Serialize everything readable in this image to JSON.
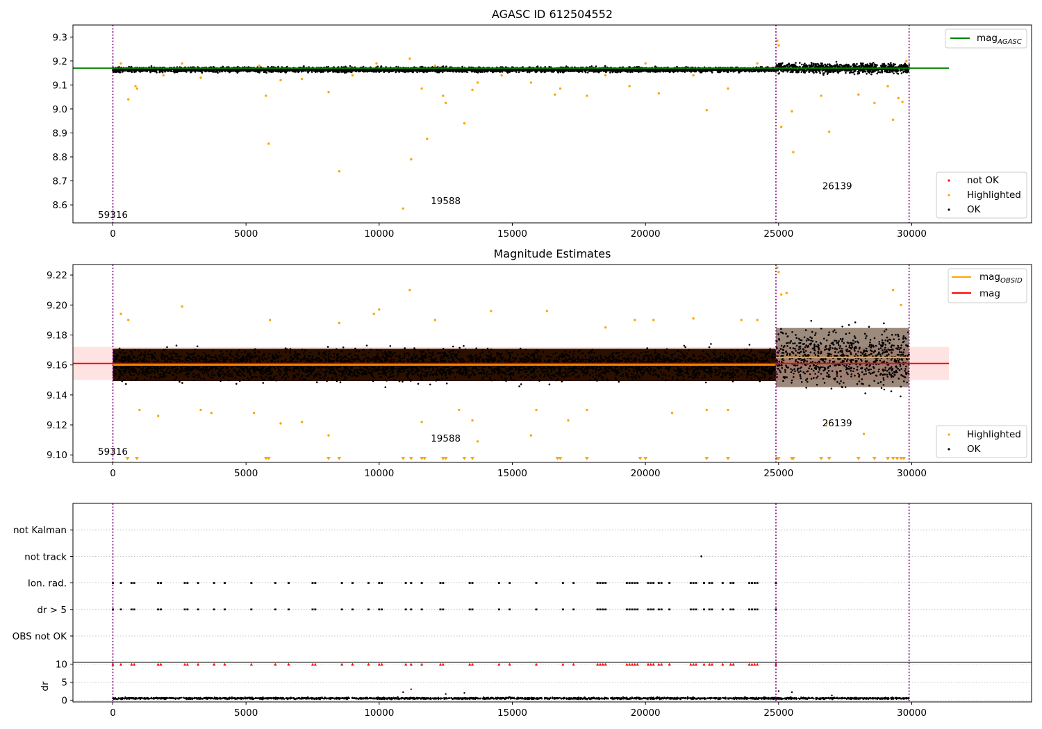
{
  "chart_data": [
    {
      "id": "panel1",
      "type": "scatter",
      "title": "AGASC ID 612504552",
      "xlim": [
        -1500,
        34500
      ],
      "ylim": [
        8.525,
        9.35
      ],
      "x_ticks": [
        0,
        5000,
        10000,
        15000,
        20000,
        25000,
        30000
      ],
      "y_ticks": [
        8.6,
        8.7,
        8.8,
        8.9,
        9.0,
        9.1,
        9.2,
        9.3
      ],
      "y_tick_labels": [
        "8.6",
        "8.7",
        "8.8",
        "8.9",
        "9.0",
        "9.1",
        "9.2",
        "9.3"
      ],
      "obsid_boundaries": [
        0,
        24900,
        29900
      ],
      "obsid_annotations": [
        {
          "text": "59316",
          "x": 0,
          "y": 8.545
        },
        {
          "text": "19588",
          "x": 12500,
          "y": 8.603
        },
        {
          "text": "26139",
          "x": 27200,
          "y": 8.665
        }
      ],
      "mag_agasc": {
        "value": 9.17,
        "x_start": -1500,
        "x_end": 31400,
        "color": "#008000"
      },
      "ok_band": [
        {
          "x_start": 0,
          "x_end": 24900,
          "center": 9.164,
          "half_width": 0.013
        },
        {
          "x_start": 24900,
          "x_end": 29900,
          "center": 9.17,
          "half_width": 0.026
        }
      ],
      "highlighted_points": [
        [
          300,
          9.19
        ],
        [
          580,
          9.04
        ],
        [
          850,
          9.095
        ],
        [
          910,
          9.085
        ],
        [
          1900,
          9.14
        ],
        [
          2600,
          9.19
        ],
        [
          3300,
          9.13
        ],
        [
          5500,
          9.18
        ],
        [
          5750,
          9.055
        ],
        [
          5850,
          8.855
        ],
        [
          6300,
          9.12
        ],
        [
          7100,
          9.125
        ],
        [
          8100,
          9.07
        ],
        [
          8500,
          8.74
        ],
        [
          9000,
          9.14
        ],
        [
          9900,
          9.19
        ],
        [
          10900,
          8.585
        ],
        [
          11150,
          9.21
        ],
        [
          11200,
          8.79
        ],
        [
          11600,
          9.085
        ],
        [
          11800,
          8.875
        ],
        [
          12100,
          9.18
        ],
        [
          12400,
          9.055
        ],
        [
          12500,
          9.025
        ],
        [
          13200,
          8.94
        ],
        [
          13500,
          9.08
        ],
        [
          13700,
          9.11
        ],
        [
          14600,
          9.14
        ],
        [
          15700,
          9.11
        ],
        [
          16600,
          9.06
        ],
        [
          16800,
          9.085
        ],
        [
          17800,
          9.055
        ],
        [
          18500,
          9.14
        ],
        [
          19400,
          9.095
        ],
        [
          20000,
          9.19
        ],
        [
          20500,
          9.065
        ],
        [
          21800,
          9.14
        ],
        [
          22300,
          8.995
        ],
        [
          23100,
          9.085
        ],
        [
          24200,
          9.19
        ],
        [
          24950,
          9.285
        ],
        [
          25000,
          9.265
        ],
        [
          25100,
          8.925
        ],
        [
          25500,
          8.99
        ],
        [
          25550,
          8.82
        ],
        [
          26600,
          9.055
        ],
        [
          26900,
          8.905
        ],
        [
          28000,
          9.06
        ],
        [
          28600,
          9.025
        ],
        [
          29100,
          9.095
        ],
        [
          29300,
          8.955
        ],
        [
          29500,
          9.045
        ],
        [
          29650,
          9.03
        ],
        [
          29800,
          9.2
        ]
      ],
      "legend_upper": [
        "mag_AGASC"
      ],
      "legend_lower": [
        "not OK",
        "Highlighted",
        "OK"
      ]
    },
    {
      "id": "panel2",
      "type": "scatter",
      "title": "Magnitude Estimates",
      "xlim": [
        -1500,
        34500
      ],
      "ylim": [
        9.095,
        9.227
      ],
      "x_ticks": [
        0,
        5000,
        10000,
        15000,
        20000,
        25000,
        30000
      ],
      "y_ticks": [
        9.1,
        9.12,
        9.14,
        9.16,
        9.18,
        9.2,
        9.22
      ],
      "y_tick_labels": [
        "9.10",
        "9.12",
        "9.14",
        "9.16",
        "9.18",
        "9.20",
        "9.22"
      ],
      "obsid_boundaries": [
        0,
        24900,
        29900
      ],
      "obsid_annotations": [
        {
          "text": "59316",
          "x": 0,
          "y": 9.1
        },
        {
          "text": "19588",
          "x": 12500,
          "y": 9.109
        },
        {
          "text": "26139",
          "x": 27200,
          "y": 9.119
        }
      ],
      "mag_line": {
        "value": 9.161,
        "x_start": -1500,
        "x_end": 31400,
        "color": "#ff0000",
        "band": [
          9.15,
          9.172
        ]
      },
      "mag_obsid_segments": [
        {
          "x_start": 0,
          "x_end": 24900,
          "value": 9.16,
          "color": "#ffa500"
        },
        {
          "x_start": 24900,
          "x_end": 29900,
          "value": 9.165,
          "color": "#ffa500"
        }
      ],
      "ok_band": [
        {
          "x_start": 0,
          "x_end": 24900,
          "center": 9.16,
          "half_width": 0.012
        },
        {
          "x_start": 24900,
          "x_end": 29900,
          "center": 9.165,
          "half_width": 0.022
        }
      ],
      "highlighted_points": [
        [
          300,
          9.194
        ],
        [
          580,
          9.19
        ],
        [
          1000,
          9.13
        ],
        [
          1700,
          9.126
        ],
        [
          2600,
          9.199
        ],
        [
          3300,
          9.13
        ],
        [
          3700,
          9.128
        ],
        [
          5300,
          9.128
        ],
        [
          5900,
          9.19
        ],
        [
          6300,
          9.121
        ],
        [
          7100,
          9.122
        ],
        [
          8100,
          9.113
        ],
        [
          8500,
          9.188
        ],
        [
          9800,
          9.194
        ],
        [
          10000,
          9.197
        ],
        [
          11150,
          9.21
        ],
        [
          11600,
          9.122
        ],
        [
          12100,
          9.19
        ],
        [
          13000,
          9.13
        ],
        [
          13500,
          9.123
        ],
        [
          13700,
          9.109
        ],
        [
          14200,
          9.196
        ],
        [
          15700,
          9.113
        ],
        [
          15900,
          9.13
        ],
        [
          16300,
          9.196
        ],
        [
          17100,
          9.123
        ],
        [
          17800,
          9.13
        ],
        [
          18500,
          9.185
        ],
        [
          19600,
          9.19
        ],
        [
          20300,
          9.19
        ],
        [
          21000,
          9.128
        ],
        [
          21800,
          9.191
        ],
        [
          22300,
          9.13
        ],
        [
          23100,
          9.13
        ],
        [
          23600,
          9.19
        ],
        [
          24200,
          9.19
        ],
        [
          24950,
          9.225
        ],
        [
          25000,
          9.222
        ],
        [
          25100,
          9.207
        ],
        [
          25300,
          9.208
        ],
        [
          26800,
          9.121
        ],
        [
          28200,
          9.114
        ],
        [
          29300,
          9.21
        ],
        [
          29600,
          9.2
        ]
      ],
      "below_range_markers_x": [
        550,
        900,
        5750,
        5850,
        8100,
        8500,
        10900,
        11200,
        11600,
        11700,
        12400,
        12500,
        13200,
        13500,
        16700,
        16800,
        17800,
        19800,
        20000,
        22300,
        23100,
        24950,
        25000,
        25500,
        25550,
        26600,
        26900,
        28000,
        28600,
        29100,
        29300,
        29450,
        29600,
        29700
      ],
      "legend_upper": [
        "mag_OBSID",
        "mag"
      ],
      "legend_lower": [
        "Highlighted",
        "OK"
      ]
    },
    {
      "id": "panel3",
      "type": "scatter",
      "xlim": [
        -1500,
        34500
      ],
      "categories": [
        "OBS not OK",
        "dr > 5",
        "Ion. rad.",
        "not track",
        "not Kalman"
      ],
      "flag_times": [
        0,
        300,
        700,
        800,
        1700,
        1800,
        2700,
        2800,
        3200,
        3800,
        4200,
        5200,
        6100,
        6600,
        7500,
        7600,
        8600,
        9000,
        9600,
        10000,
        10100,
        11000,
        11200,
        11600,
        12300,
        12400,
        13400,
        13500,
        14500,
        14900,
        15900,
        16900,
        17300,
        18200,
        18300,
        18400,
        18500,
        19300,
        19400,
        19500,
        19600,
        19700,
        20100,
        20200,
        20300,
        20500,
        20600,
        20900,
        21700,
        21800,
        21900,
        22200,
        22400,
        22500,
        22900,
        23200,
        23300,
        23900,
        24000,
        24100,
        24200,
        24900
      ],
      "not_track_points": [
        [
          22100,
          "not track"
        ]
      ],
      "x_ticks": []
    },
    {
      "id": "panel4",
      "type": "scatter",
      "xlim": [
        -1500,
        34500
      ],
      "ylim": [
        -0.5,
        10.5
      ],
      "ylabel": "dr",
      "x_ticks": [
        0,
        5000,
        10000,
        15000,
        20000,
        25000,
        30000
      ],
      "y_ticks": [
        0,
        5,
        10
      ],
      "y_tick_labels": [
        "0",
        "5",
        "10"
      ],
      "dr_baseline": {
        "x_start": 0,
        "x_end": 29900,
        "center": 0.5,
        "half_width": 0.4
      },
      "dr_outliers": [
        [
          10900,
          2.2
        ],
        [
          11200,
          3.0
        ],
        [
          12500,
          1.7
        ],
        [
          13200,
          2.0
        ],
        [
          25000,
          2.5
        ],
        [
          25500,
          2.2
        ],
        [
          27000,
          1.3
        ]
      ],
      "dr_clipped_red_times": [
        0,
        300,
        700,
        800,
        1700,
        1800,
        2700,
        2800,
        3200,
        3800,
        4200,
        5200,
        6100,
        6600,
        7500,
        7600,
        8600,
        9000,
        9600,
        10000,
        10100,
        11000,
        11200,
        11600,
        12300,
        12400,
        13400,
        13500,
        14500,
        14900,
        15900,
        16900,
        17300,
        18200,
        18300,
        18400,
        18500,
        19300,
        19400,
        19500,
        19600,
        19700,
        20100,
        20200,
        20300,
        20500,
        20600,
        20900,
        21700,
        21800,
        21900,
        22200,
        22400,
        22500,
        22900,
        23200,
        23300,
        23900,
        24000,
        24100,
        24200,
        24900
      ],
      "dr_red_outlier": [
        11200,
        3.0
      ]
    }
  ],
  "legend": {
    "mag_agasc_main": "mag",
    "mag_agasc_sub": "AGASC",
    "mag_obsid_main": "mag",
    "mag_obsid_sub": "OBSID",
    "mag": "mag",
    "not_ok": "not OK",
    "highlighted": "Highlighted",
    "ok": "OK"
  },
  "colors": {
    "ok": "#000000",
    "highlighted": "#ffa500",
    "not_ok": "#ff0000",
    "mag_agasc": "#008000",
    "mag": "#ff0000",
    "mag_obsid": "#ffa500",
    "boundary": "#800080",
    "mag_band": "#ffdddd",
    "ok_band_panel2": "#2b1000"
  }
}
